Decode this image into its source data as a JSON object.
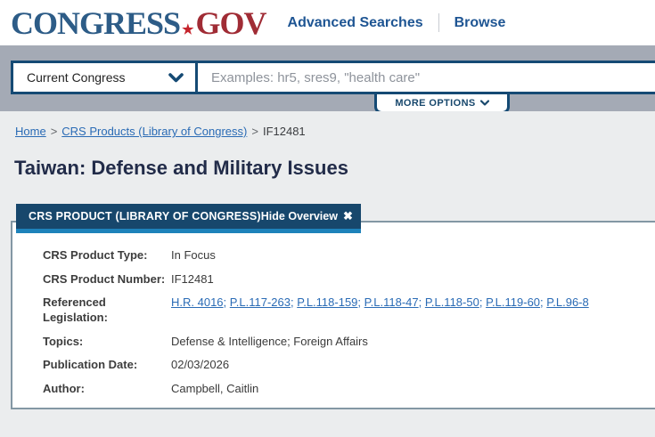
{
  "header": {
    "logo": {
      "congress": "CONGRESS",
      "star": "★",
      "gov": "GOV"
    },
    "nav": [
      {
        "label": "Advanced Searches"
      },
      {
        "label": "Browse"
      }
    ]
  },
  "search": {
    "scope_selected": "Current Congress",
    "placeholder": "Examples: hr5, sres9, \"health care\"",
    "more_options_label": "MORE OPTIONS"
  },
  "breadcrumb": {
    "separator": ">",
    "items": [
      {
        "label": "Home"
      },
      {
        "label": "CRS Products (Library of Congress)"
      },
      {
        "label": "IF12481"
      }
    ]
  },
  "page": {
    "title": "Taiwan: Defense and Military Issues"
  },
  "overview": {
    "header": "CRS PRODUCT (LIBRARY OF CONGRESS)",
    "hide_label": "Hide Overview",
    "close_icon": "✖",
    "rows": [
      {
        "label": "CRS Product Type:",
        "value": "In Focus"
      },
      {
        "label": "CRS Product Number:",
        "value": "IF12481"
      },
      {
        "label": "Referenced Legislation:",
        "separator": "; ",
        "links": [
          "H.R. 4016",
          "P.L.117-263",
          "P.L.118-159",
          "P.L.118-47",
          "P.L.118-50",
          "P.L.119-60",
          "P.L.96-8"
        ]
      },
      {
        "label": "Topics:",
        "value": "Defense & Intelligence; Foreign Affairs"
      },
      {
        "label": "Publication Date:",
        "value": "02/03/2026"
      },
      {
        "label": "Author:",
        "value": "Campbell, Caitlin"
      }
    ]
  },
  "colors": {
    "navy": "#17476c",
    "accent_blue": "#1e82ba",
    "link_blue": "#2a6bb5",
    "banner_gray": "#a4aab5",
    "page_bg": "#ebedee",
    "logo_blue": "#2d5c87",
    "logo_red": "#a02c35",
    "star_red": "#c5242c",
    "title_navy": "#222c49"
  }
}
